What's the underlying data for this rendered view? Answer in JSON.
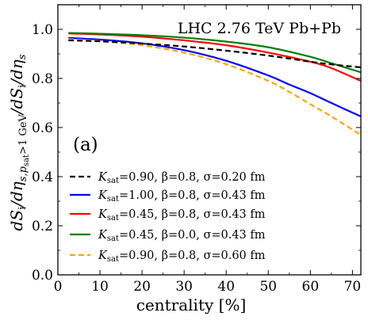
{
  "chart_data": {
    "type": "line",
    "annotation": "LHC 2.76 TeV Pb+Pb",
    "panel_label": "(a)",
    "xlabel": "centrality [%]",
    "ylabel_parts": {
      "num_main": "dS",
      "num_sub": "i",
      "num_sep": "/dη",
      "num_sub2": "s,p",
      "num_sub2_sub": "sat",
      "num_sub2_tail": ">1 GeV",
      "den_main": "/dS",
      "den_sub": "i",
      "den_tail": "/dη",
      "den_tail_sub": "s"
    },
    "xlim": [
      0,
      72
    ],
    "ylim": [
      0.0,
      1.1
    ],
    "xticks": [
      0,
      10,
      20,
      30,
      40,
      50,
      60,
      70
    ],
    "yticks": [
      0.0,
      0.2,
      0.4,
      0.6,
      0.8,
      1.0
    ],
    "ytick_labels": [
      "0.0",
      "0.2",
      "0.4",
      "0.6",
      "0.8",
      "1.0"
    ],
    "grid": false,
    "legend_position": "lower-left",
    "series": [
      {
        "name": "K_sat=0.90, β=0.8, σ=0.20 fm",
        "legend": {
          "k": "K",
          "k_sub": "sat",
          "k_val": "=0.90",
          "beta": ", β=0.8, ",
          "sigma": "σ=0.20 fm"
        },
        "color": "#000000",
        "dash": "7,4",
        "x": [
          2.5,
          10,
          20,
          30,
          40,
          50,
          60,
          65,
          72
        ],
        "y": [
          0.955,
          0.951,
          0.942,
          0.93,
          0.913,
          0.893,
          0.868,
          0.857,
          0.845
        ]
      },
      {
        "name": "K_sat=1.00, β=0.8, σ=0.43 fm",
        "legend": {
          "k": "K",
          "k_sub": "sat",
          "k_val": "=1.00",
          "beta": ", β=0.8, ",
          "sigma": "σ=0.43 fm"
        },
        "color": "#0000ff",
        "dash": "",
        "x": [
          2.5,
          10,
          20,
          30,
          40,
          50,
          55,
          60,
          65,
          72
        ],
        "y": [
          0.965,
          0.958,
          0.943,
          0.915,
          0.872,
          0.812,
          0.775,
          0.74,
          0.7,
          0.645
        ]
      },
      {
        "name": "K_sat=0.45, β=0.8, σ=0.43 fm",
        "legend": {
          "k": "K",
          "k_sub": "sat",
          "k_val": "=0.45",
          "beta": ", β=0.8, ",
          "sigma": "σ=0.43 fm"
        },
        "color": "#ff0000",
        "dash": "",
        "x": [
          2.5,
          10,
          20,
          30,
          40,
          50,
          60,
          65,
          72
        ],
        "y": [
          0.983,
          0.979,
          0.97,
          0.955,
          0.935,
          0.905,
          0.868,
          0.842,
          0.79
        ]
      },
      {
        "name": "K_sat=0.45, β=0.0, σ=0.43 fm",
        "legend": {
          "k": "K",
          "k_sub": "sat",
          "k_val": "=0.45",
          "beta": ", β=0.0, ",
          "sigma": "σ=0.43 fm"
        },
        "color": "#008000",
        "dash": "",
        "x": [
          2.5,
          10,
          20,
          30,
          40,
          50,
          60,
          65,
          72
        ],
        "y": [
          0.985,
          0.982,
          0.976,
          0.966,
          0.95,
          0.927,
          0.888,
          0.862,
          0.825
        ]
      },
      {
        "name": "K_sat=0.90, β=0.8, σ=0.60 fm",
        "legend": {
          "k": "K",
          "k_sub": "sat",
          "k_val": "=0.90",
          "beta": ", β=0.8, ",
          "sigma": "σ=0.60 fm"
        },
        "color": "#ffa500",
        "dash": "7,4",
        "x": [
          2.5,
          10,
          20,
          30,
          40,
          50,
          55,
          60,
          65,
          72
        ],
        "y": [
          0.96,
          0.952,
          0.935,
          0.905,
          0.858,
          0.79,
          0.745,
          0.695,
          0.645,
          0.57
        ]
      }
    ]
  }
}
